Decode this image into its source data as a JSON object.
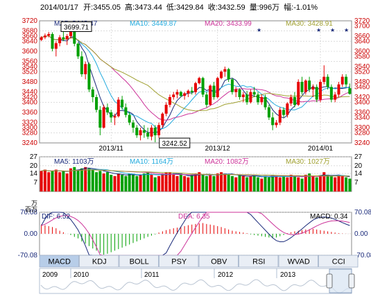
{
  "header": {
    "date": "2014/01/17",
    "open_label": "开:",
    "open": "3455.05",
    "high_label": "高:",
    "high": "3473.44",
    "low_label": "低:",
    "low": "3429.84",
    "close_label": "收:",
    "close": "3432.59",
    "volume_label": "量:",
    "volume": "996万",
    "change_label": "幅:",
    "change": "-1.01%"
  },
  "colors": {
    "up": "#e60000",
    "down": "#00a000",
    "ma5": "#1a2a7a",
    "ma10": "#22aadd",
    "ma20": "#cc3399",
    "ma30": "#a0a030",
    "bg_top": "#ffffff",
    "grid": "#c8c8c8"
  },
  "chart_data": [
    {
      "type": "candlestick",
      "legend": [
        {
          "label": "MA5: 3442.47",
          "color": "#1a2a7a"
        },
        {
          "label": "MA10: 3449.87",
          "color": "#22aadd"
        },
        {
          "label": "MA20: 3433.99",
          "color": "#cc3399"
        },
        {
          "label": "MA30: 3428.91",
          "color": "#a0a030"
        }
      ],
      "ylim": [
        3240,
        3720
      ],
      "yticks": [
        3720,
        3680,
        3640,
        3600,
        3560,
        3520,
        3480,
        3440,
        3400,
        3360,
        3320,
        3280,
        3240
      ],
      "yticks_display": [
        "3720",
        "3680",
        "3660",
        "3640",
        "3600",
        "3560",
        "3540",
        "3520",
        "3480",
        "3440",
        "3420",
        "3400",
        "3360",
        "3320",
        "3300",
        "3280",
        "3240"
      ],
      "right_ticks": [
        "3720",
        "3700",
        "3660",
        "3640",
        "3600",
        "3580",
        "3540",
        "3520",
        "3480",
        "3460",
        "3420",
        "3400",
        "3360",
        "3340",
        "3300",
        "3280",
        "3240"
      ],
      "x_labels": [
        {
          "index": 19,
          "text": "2013/11"
        },
        {
          "index": 48,
          "text": "2013/12"
        },
        {
          "index": 76,
          "text": "2014/01"
        }
      ],
      "annotations": [
        {
          "text": "3699.71",
          "index": 8,
          "value": 3699.71
        },
        {
          "text": "3242.52",
          "index": 31,
          "value": 3242.52
        }
      ],
      "ohlc": [
        [
          3645,
          3660,
          3640,
          3655
        ],
        [
          3655,
          3670,
          3648,
          3662
        ],
        [
          3662,
          3676,
          3655,
          3668
        ],
        [
          3668,
          3675,
          3600,
          3610
        ],
        [
          3610,
          3640,
          3580,
          3632
        ],
        [
          3632,
          3664,
          3620,
          3655
        ],
        [
          3655,
          3680,
          3640,
          3648
        ],
        [
          3648,
          3668,
          3625,
          3660
        ],
        [
          3660,
          3699.71,
          3650,
          3690
        ],
        [
          3690,
          3700,
          3620,
          3630
        ],
        [
          3630,
          3635,
          3570,
          3580
        ],
        [
          3580,
          3600,
          3500,
          3510
        ],
        [
          3510,
          3560,
          3490,
          3550
        ],
        [
          3550,
          3556,
          3440,
          3450
        ],
        [
          3450,
          3460,
          3400,
          3420
        ],
        [
          3420,
          3430,
          3360,
          3370
        ],
        [
          3370,
          3385,
          3270,
          3300
        ],
        [
          3300,
          3390,
          3296,
          3380
        ],
        [
          3380,
          3395,
          3350,
          3360
        ],
        [
          3360,
          3370,
          3320,
          3340
        ],
        [
          3340,
          3355,
          3310,
          3345
        ],
        [
          3345,
          3420,
          3340,
          3410
        ],
        [
          3410,
          3425,
          3370,
          3380
        ],
        [
          3380,
          3395,
          3340,
          3350
        ],
        [
          3350,
          3360,
          3310,
          3320
        ],
        [
          3320,
          3330,
          3280,
          3300
        ],
        [
          3300,
          3310,
          3260,
          3270
        ],
        [
          3270,
          3300,
          3250,
          3290
        ],
        [
          3290,
          3310,
          3260,
          3280
        ],
        [
          3280,
          3300,
          3255,
          3265
        ],
        [
          3265,
          3310,
          3250,
          3300
        ],
        [
          3300,
          3310,
          3242.52,
          3270
        ],
        [
          3270,
          3320,
          3260,
          3310
        ],
        [
          3310,
          3360,
          3300,
          3355
        ],
        [
          3355,
          3400,
          3345,
          3390
        ],
        [
          3390,
          3430,
          3380,
          3420
        ],
        [
          3420,
          3440,
          3410,
          3430
        ],
        [
          3430,
          3450,
          3415,
          3440
        ],
        [
          3440,
          3445,
          3420,
          3425
        ],
        [
          3425,
          3440,
          3410,
          3435
        ],
        [
          3435,
          3450,
          3420,
          3445
        ],
        [
          3445,
          3460,
          3430,
          3440
        ],
        [
          3440,
          3480,
          3430,
          3475
        ],
        [
          3475,
          3500,
          3470,
          3495
        ],
        [
          3495,
          3500,
          3420,
          3430
        ],
        [
          3430,
          3440,
          3380,
          3390
        ],
        [
          3390,
          3470,
          3385,
          3465
        ],
        [
          3465,
          3480,
          3410,
          3420
        ],
        [
          3420,
          3500,
          3415,
          3495
        ],
        [
          3495,
          3525,
          3490,
          3520
        ],
        [
          3520,
          3540,
          3500,
          3530
        ],
        [
          3530,
          3535,
          3480,
          3490
        ],
        [
          3490,
          3495,
          3430,
          3440
        ],
        [
          3440,
          3460,
          3420,
          3450
        ],
        [
          3450,
          3455,
          3410,
          3420
        ],
        [
          3420,
          3440,
          3400,
          3430
        ],
        [
          3430,
          3445,
          3390,
          3400
        ],
        [
          3400,
          3450,
          3395,
          3440
        ],
        [
          3440,
          3460,
          3420,
          3430
        ],
        [
          3430,
          3440,
          3390,
          3400
        ],
        [
          3400,
          3430,
          3390,
          3420
        ],
        [
          3420,
          3430,
          3370,
          3380
        ],
        [
          3380,
          3390,
          3330,
          3340
        ],
        [
          3340,
          3360,
          3290,
          3310
        ],
        [
          3310,
          3330,
          3300,
          3320
        ],
        [
          3320,
          3380,
          3310,
          3370
        ],
        [
          3370,
          3380,
          3340,
          3350
        ],
        [
          3350,
          3400,
          3340,
          3395
        ],
        [
          3395,
          3430,
          3385,
          3420
        ],
        [
          3420,
          3440,
          3380,
          3390
        ],
        [
          3390,
          3490,
          3385,
          3480
        ],
        [
          3480,
          3500,
          3430,
          3440
        ],
        [
          3440,
          3490,
          3430,
          3485
        ],
        [
          3485,
          3500,
          3440,
          3450
        ],
        [
          3450,
          3470,
          3420,
          3460
        ],
        [
          3460,
          3470,
          3400,
          3410
        ],
        [
          3410,
          3490,
          3400,
          3480
        ],
        [
          3480,
          3545,
          3470,
          3500
        ],
        [
          3500,
          3510,
          3450,
          3460
        ],
        [
          3460,
          3470,
          3400,
          3410
        ],
        [
          3410,
          3440,
          3400,
          3430
        ],
        [
          3430,
          3480,
          3420,
          3470
        ],
        [
          3470,
          3510,
          3460,
          3500
        ],
        [
          3500,
          3510,
          3460,
          3470
        ],
        [
          3455.05,
          3473.44,
          3429.84,
          3432.59
        ]
      ]
    },
    {
      "type": "bar",
      "unit_label": "万",
      "legend": [
        {
          "label": "MA5: 1103万",
          "color": "#1a2a7a"
        },
        {
          "label": "MA10: 1164万",
          "color": "#22aadd"
        },
        {
          "label": "MA20: 1082万",
          "color": "#cc3399"
        },
        {
          "label": "MA30: 1027万",
          "color": "#a0a030"
        }
      ],
      "ylim": [
        0,
        27
      ],
      "yticks": [
        "27",
        "20",
        "14",
        "7"
      ],
      "values": [
        16,
        17,
        15,
        16,
        17,
        15,
        16,
        14,
        18,
        19,
        17,
        18,
        19,
        18,
        17,
        15,
        16,
        14,
        15,
        13,
        12,
        14,
        13,
        12,
        14,
        13,
        12,
        13,
        14,
        15,
        13,
        11,
        12,
        14,
        15,
        15,
        13,
        12,
        13,
        12,
        11,
        13,
        14,
        15,
        13,
        12,
        13,
        12,
        14,
        15,
        14,
        13,
        12,
        11,
        13,
        12,
        11,
        12,
        13,
        11,
        10,
        12,
        11,
        13,
        12,
        11,
        12,
        11,
        13,
        12,
        11,
        10,
        13,
        14,
        12,
        11,
        12,
        15,
        13,
        12,
        11,
        13,
        12,
        11,
        10
      ]
    },
    {
      "type": "macd",
      "unit_label": "百万",
      "legend": [
        {
          "label": "DIF: 6.52",
          "color": "#1a2a7a"
        },
        {
          "label": "DEA: 6.35",
          "color": "#cc3399"
        },
        {
          "label": "MACD: 0.34",
          "color": "#000000"
        }
      ],
      "ylim": [
        -70.08,
        70.08
      ],
      "yticks": [
        "70.08",
        "0.00",
        "-70.08"
      ],
      "hist": [
        30,
        28,
        25,
        22,
        18,
        10,
        5,
        0,
        -4,
        -10,
        -15,
        -25,
        -32,
        -40,
        -48,
        -55,
        -62,
        -68,
        -65,
        -60,
        -55,
        -50,
        -45,
        -40,
        -35,
        -30,
        -25,
        -20,
        -15,
        -10,
        -6,
        -2,
        4,
        8,
        12,
        15,
        18,
        20,
        22,
        25,
        28,
        30,
        32,
        34,
        35,
        32,
        30,
        28,
        25,
        22,
        18,
        14,
        10,
        8,
        6,
        4,
        2,
        -2,
        -4,
        -6,
        -8,
        -10,
        -12,
        -14,
        -12,
        -8,
        -4,
        2,
        5,
        8,
        10,
        12,
        14,
        15,
        16,
        14,
        12,
        10,
        8,
        6,
        4,
        2,
        1,
        0.5,
        0.34
      ]
    },
    {
      "type": "overview",
      "x_labels": [
        "2009",
        "2010",
        "2011",
        "2012",
        "2013"
      ]
    }
  ],
  "indicator_tabs": [
    "MACD",
    "KDJ",
    "BOLL",
    "PSY",
    "OBV",
    "RSI",
    "WVAD",
    "CCI"
  ],
  "active_tab": "MACD"
}
